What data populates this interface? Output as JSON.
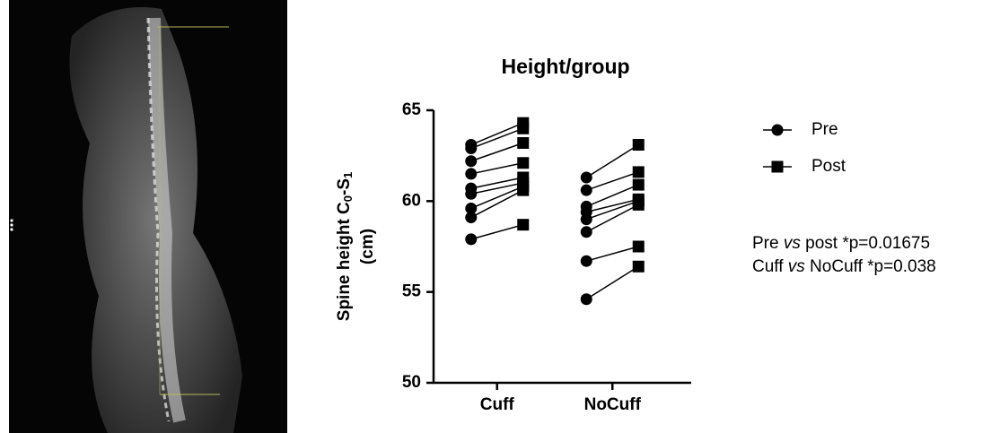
{
  "chart_data": {
    "type": "before-after",
    "title": "Height/group",
    "ylabel": [
      "Spine height C",
      "0",
      "-S",
      "1"
    ],
    "ylabel_unit": "(cm)",
    "categories": [
      "Cuff",
      "NoCuff"
    ],
    "series": [
      {
        "name": "Pre",
        "marker": "circle",
        "color": "#000000",
        "values": [
          [
            63.1,
            62.9,
            62.2,
            61.5,
            60.7,
            60.4,
            59.6,
            59.1,
            57.9
          ],
          [
            61.3,
            60.6,
            59.7,
            59.4,
            59.0,
            58.3,
            56.7,
            54.6
          ]
        ]
      },
      {
        "name": "Post",
        "marker": "square",
        "color": "#000000",
        "values": [
          [
            64.3,
            64.0,
            63.2,
            62.1,
            61.3,
            61.0,
            60.8,
            60.6,
            58.7
          ],
          [
            63.1,
            61.6,
            60.9,
            60.1,
            60.0,
            59.8,
            57.5,
            56.4
          ]
        ]
      }
    ],
    "ylim": [
      50,
      65
    ],
    "yticks": [
      50,
      55,
      60,
      65
    ],
    "annotations": [
      [
        "Pre ",
        "vs",
        " post *p=0.01675"
      ],
      [
        "Cuff ",
        "vs",
        " NoCuff *p=0.038"
      ]
    ]
  }
}
